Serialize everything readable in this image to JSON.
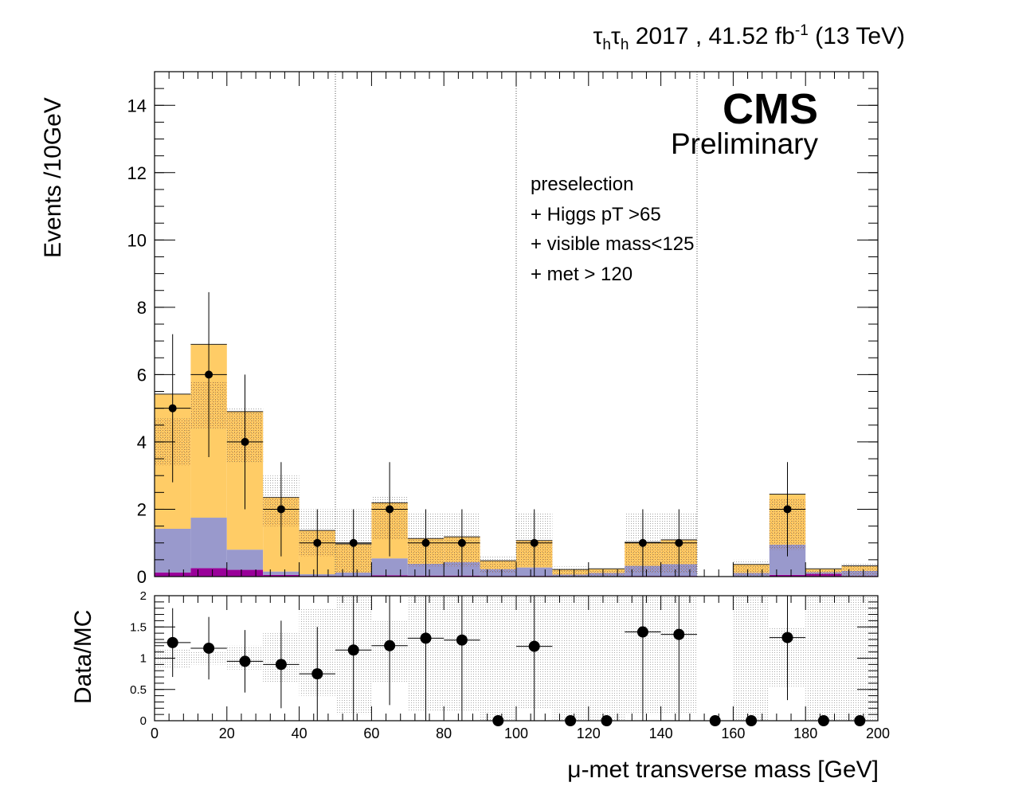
{
  "header": {
    "channel_a": "τ",
    "sub_a": "h",
    "channel_b": "τ",
    "sub_b": "h",
    "lumi_text": " 2017 , 41.52 fb",
    "lumi_sup": "-1",
    "energy": " (13 TeV)"
  },
  "labels": {
    "cms": "CMS",
    "preliminary": "Preliminary",
    "selection": [
      "preselection",
      "+ Higgs pT >65",
      "+ visible mass<125",
      "+ met > 120"
    ]
  },
  "colors": {
    "zll": "#ffcc66",
    "ttbar": "#9999cc",
    "other": "#990099",
    "uncertainty_band": "#999999",
    "data": "#000000"
  },
  "chart_data": [
    {
      "type": "bar",
      "stacked": true,
      "xlabel": "μ-met transverse mass [GeV]",
      "ylabel": "Events /10GeV",
      "xlim": [
        0,
        200
      ],
      "ylim": [
        0,
        15
      ],
      "bin_width": 10,
      "bin_edges": [
        0,
        10,
        20,
        30,
        40,
        50,
        60,
        70,
        80,
        90,
        100,
        110,
        120,
        130,
        140,
        150,
        160,
        170,
        180,
        190,
        200
      ],
      "x_ticks": [
        0,
        20,
        40,
        60,
        80,
        100,
        120,
        140,
        160,
        180,
        200
      ],
      "y_ticks": [
        0,
        2,
        4,
        6,
        8,
        10,
        12,
        14
      ],
      "vertical_dotted_lines": [
        50,
        100,
        150
      ],
      "series": [
        {
          "values": [
            0.12,
            0.25,
            0.2,
            0.05,
            0.02,
            0.02,
            0.04,
            0.03,
            0.03,
            0.02,
            0.02,
            0.01,
            0.01,
            0.02,
            0.02,
            0.0,
            0.01,
            0.05,
            0.08,
            0.02
          ]
        },
        {
          "values": [
            1.3,
            1.5,
            0.6,
            0.1,
            0.05,
            0.1,
            0.5,
            0.35,
            0.4,
            0.2,
            0.25,
            0.05,
            0.1,
            0.3,
            0.35,
            0.0,
            0.1,
            0.9,
            0.05,
            0.15
          ]
        },
        {
          "values": [
            4.0,
            5.15,
            4.1,
            2.2,
            1.3,
            0.85,
            1.65,
            0.75,
            0.75,
            0.25,
            0.8,
            0.15,
            0.12,
            0.7,
            0.72,
            0.0,
            0.25,
            1.5,
            0.1,
            0.15
          ]
        }
      ],
      "uncertainty": {
        "low": [
          3.3,
          4.4,
          3.4,
          1.5,
          0.6,
          0.1,
          1.1,
          0.3,
          0.3,
          0.1,
          0.3,
          0.0,
          0.0,
          0.1,
          0.1,
          0.0,
          0.0,
          0.8,
          0.0,
          0.0
        ],
        "high": [
          4.7,
          5.8,
          5.0,
          3.0,
          2.0,
          2.0,
          2.4,
          1.9,
          1.9,
          0.6,
          1.9,
          0.3,
          0.2,
          1.9,
          1.9,
          0.0,
          0.5,
          2.3,
          0.2,
          0.4
        ]
      },
      "data_points": {
        "x": [
          5,
          15,
          25,
          35,
          45,
          55,
          65,
          75,
          85,
          105,
          135,
          145,
          175
        ],
        "y": [
          5,
          6,
          4,
          2,
          1,
          1,
          2,
          1,
          1,
          1,
          1,
          1,
          2
        ],
        "err_low": [
          2.2,
          2.45,
          2.0,
          1.4,
          1.0,
          1.0,
          1.4,
          1.0,
          1.0,
          1.0,
          1.0,
          1.0,
          1.4
        ],
        "err_high": [
          2.2,
          2.45,
          2.0,
          1.4,
          1.0,
          1.0,
          1.4,
          1.0,
          1.0,
          1.0,
          1.0,
          1.0,
          1.4
        ]
      }
    },
    {
      "type": "scatter",
      "xlabel": "μ-met transverse mass [GeV]",
      "ylabel": "Data/MC",
      "xlim": [
        0,
        200
      ],
      "ylim": [
        0,
        2
      ],
      "x_ticks": [
        0,
        20,
        40,
        60,
        80,
        100,
        120,
        140,
        160,
        180,
        200
      ],
      "x_tick_labels": [
        "0",
        "20",
        "40",
        "60",
        "80",
        "100",
        "120",
        "140",
        "160",
        "180",
        "200"
      ],
      "y_ticks": [
        0,
        0.5,
        1,
        1.5,
        2
      ],
      "y_tick_labels": [
        "0",
        "0.5",
        "1",
        "1.5",
        "2"
      ],
      "x": [
        5,
        15,
        25,
        35,
        45,
        55,
        65,
        75,
        85,
        95,
        105,
        115,
        125,
        135,
        145,
        155,
        165,
        175,
        185,
        195
      ],
      "y": [
        1.25,
        1.16,
        0.95,
        0.9,
        0.75,
        1.13,
        1.2,
        1.32,
        1.29,
        0.0,
        1.19,
        0.0,
        0.0,
        1.42,
        1.38,
        0.0,
        0.0,
        1.33,
        0.0,
        0.0
      ],
      "err": [
        0.55,
        0.5,
        0.5,
        0.7,
        0.75,
        1.13,
        0.95,
        1.32,
        1.29,
        0.0,
        1.19,
        0.0,
        0.0,
        1.42,
        1.38,
        0.0,
        0.0,
        1.0,
        0.0,
        0.0
      ],
      "band_low": [
        0.85,
        0.9,
        0.82,
        0.62,
        0.4,
        0.1,
        0.6,
        0.15,
        0.15,
        0.0,
        0.2,
        0.0,
        0.0,
        0.1,
        0.1,
        0.0,
        0.0,
        0.55,
        0.0,
        0.0
      ],
      "band_high": [
        1.15,
        1.1,
        1.2,
        1.4,
        1.8,
        2.0,
        1.6,
        2.0,
        2.0,
        2.0,
        2.0,
        2.0,
        2.0,
        2.0,
        2.0,
        0.0,
        2.0,
        1.5,
        2.0,
        2.0
      ]
    }
  ]
}
